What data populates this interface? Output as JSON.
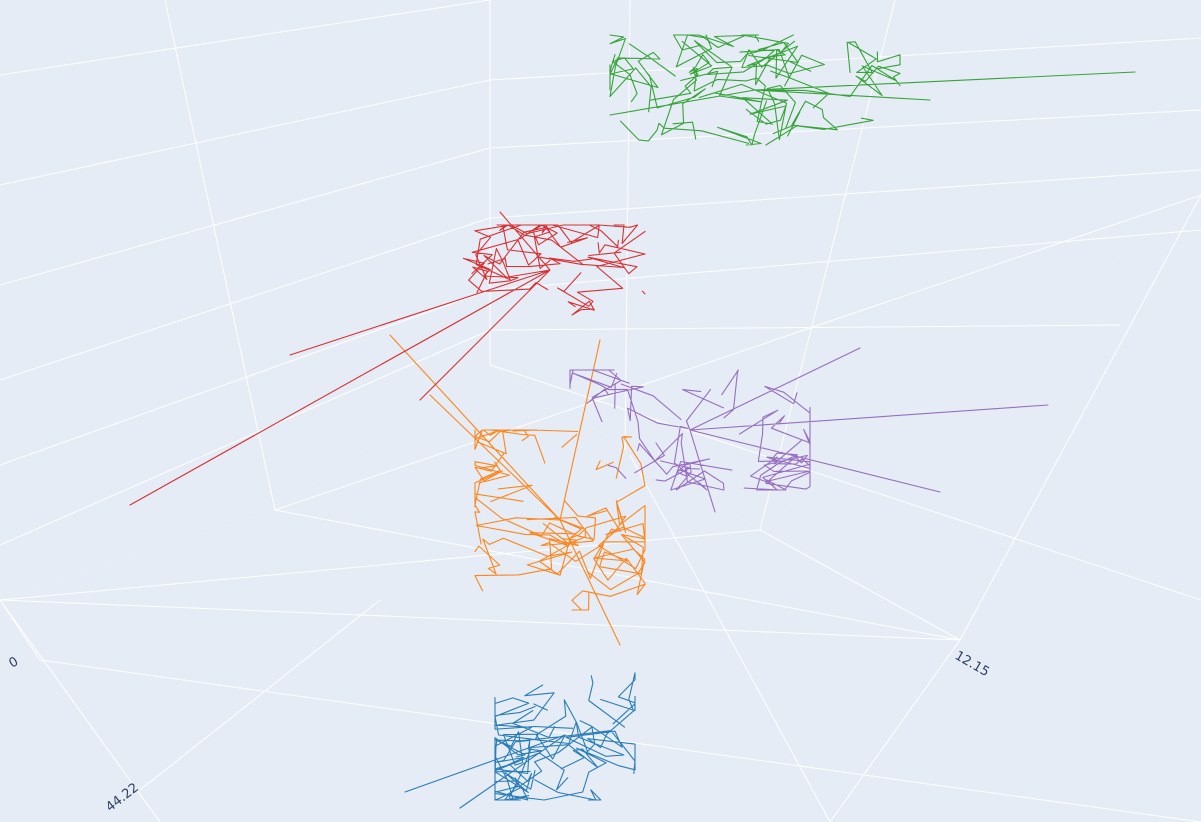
{
  "chart_data": {
    "type": "line",
    "projection": "3d",
    "background": "#e5ecf6",
    "grid": true,
    "gridColor": "#ffffff",
    "legend": "none",
    "axes": {
      "x": {
        "tick_labels": [
          "0",
          "12.15"
        ]
      },
      "y": {
        "tick_labels": [
          "44.22"
        ]
      },
      "z": {
        "tick_labels": []
      }
    },
    "series": [
      {
        "color": "#1f77b4"
      },
      {
        "color": "#ff7f0e"
      },
      {
        "color": "#2ca02c"
      },
      {
        "color": "#d62728"
      },
      {
        "color": "#9467bd"
      }
    ]
  }
}
